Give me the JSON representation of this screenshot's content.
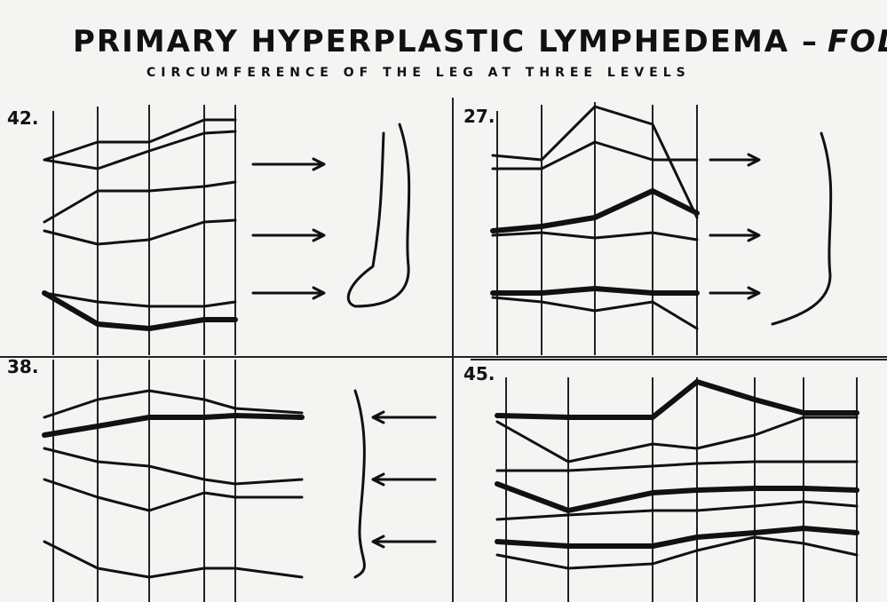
{
  "title": {
    "main": "PRIMARY HYPERPLASTIC LYMPHEDEMA –",
    "emphasis": "FOLLOW UP"
  },
  "subtitle": "CIRCUMFERENCE OF THE LEG AT THREE LEVELS",
  "panels": [
    {
      "label": "42."
    },
    {
      "label": "27."
    },
    {
      "label": "38."
    },
    {
      "label": "45."
    }
  ]
}
